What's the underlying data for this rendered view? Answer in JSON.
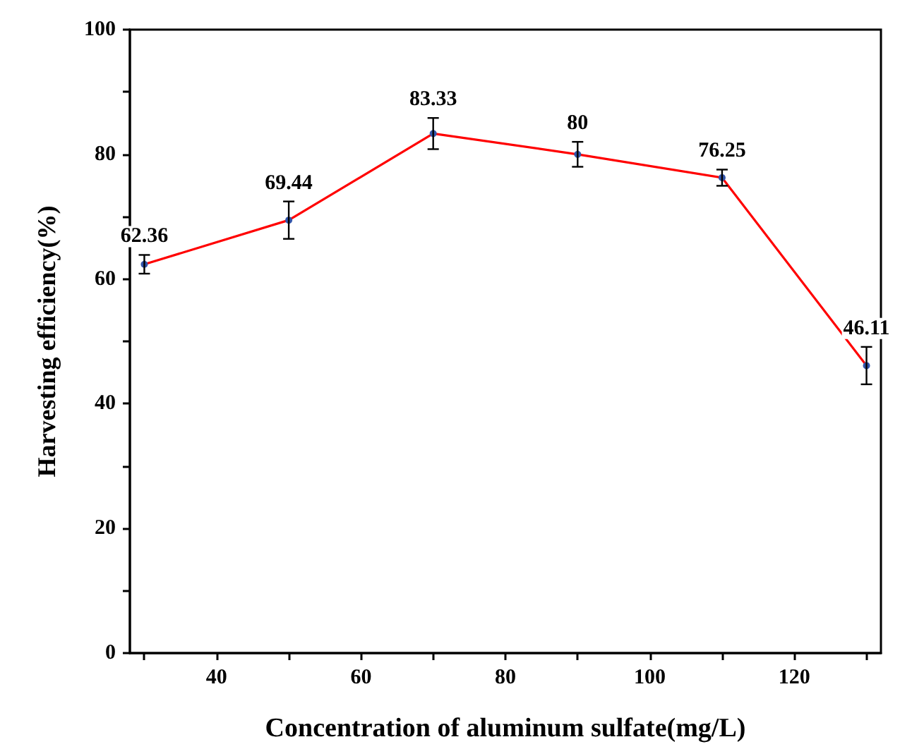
{
  "chart_data": {
    "type": "line",
    "xlabel": "Concentration of aluminum sulfate(mg/L)",
    "ylabel": "Harvesting efficiency(%)",
    "x": [
      30,
      50,
      70,
      90,
      110,
      130
    ],
    "series": [
      {
        "color": "#ff0000",
        "values": [
          62.36,
          69.44,
          83.33,
          80,
          76.25,
          46.11
        ],
        "errors": [
          1.5,
          3,
          2.5,
          2,
          1.3,
          3
        ]
      }
    ],
    "data_labels": true,
    "marker": "circle",
    "line_style": "solid",
    "grid": false,
    "xlim": [
      28,
      132
    ],
    "xticks": [
      {
        "value": 30,
        "label": null
      },
      40,
      {
        "value": 50,
        "label": null
      },
      60,
      {
        "value": 70,
        "label": null
      },
      80,
      {
        "value": 90,
        "label": null
      },
      100,
      {
        "value": 110,
        "label": null
      },
      120,
      {
        "value": 130,
        "label": null
      }
    ],
    "ylim": [
      0,
      100
    ],
    "yticks": [
      0,
      {
        "value": 10,
        "label": null
      },
      20,
      {
        "value": 30,
        "label": null
      },
      40,
      {
        "value": 50,
        "label": null
      },
      60,
      {
        "value": 70,
        "label": null
      },
      80,
      {
        "value": 90,
        "label": null
      },
      100
    ]
  }
}
